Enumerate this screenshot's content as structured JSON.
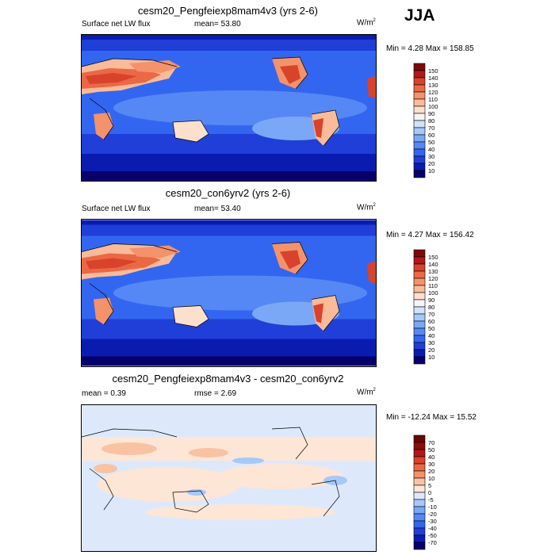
{
  "season": "JJA",
  "panels": [
    {
      "title": "cesm20_Pengfeiexp8mam4v3 (yrs 2-6)",
      "left_label": "Surface net LW flux",
      "center_label": "mean=  53.80",
      "unit_base": "W/m",
      "unit_exp": "2",
      "minmax": "Min =   4.28 Max = 158.85",
      "palette": "absolute"
    },
    {
      "title": "cesm20_con6yrv2 (yrs 2-6)",
      "left_label": "Surface net LW flux",
      "center_label": "mean=  53.40",
      "unit_base": "W/m",
      "unit_exp": "2",
      "minmax": "Min =   4.27 Max = 156.42",
      "palette": "absolute"
    },
    {
      "title": "cesm20_Pengfeiexp8mam4v3 - cesm20_con6yrv2",
      "left_label": "mean =   0.39",
      "center_label": "rmse =   2.69",
      "unit_base": "W/m",
      "unit_exp": "2",
      "minmax": "Min = -12.24 Max =  15.52",
      "palette": "difference"
    }
  ],
  "chart_data": [
    {
      "type": "heatmap",
      "title": "cesm20_Pengfeiexp8mam4v3 (yrs 2-6)",
      "variable": "Surface net LW flux",
      "units": "W/m2",
      "season": "JJA",
      "mean": 53.8,
      "min": 4.28,
      "max": 158.85,
      "colorbar_levels": [
        10,
        20,
        30,
        40,
        50,
        60,
        70,
        80,
        90,
        100,
        110,
        120,
        130,
        140,
        150
      ],
      "colorbar_colors": [
        "#07006b",
        "#0a1cb0",
        "#1f3fd8",
        "#3366f0",
        "#5588f5",
        "#7aa8f7",
        "#a6c8fa",
        "#cfe2fc",
        "#f5f5f5",
        "#fde0cc",
        "#f9bb9a",
        "#f4926c",
        "#eb6845",
        "#d9422b",
        "#b21818",
        "#7d0a0a"
      ]
    },
    {
      "type": "heatmap",
      "title": "cesm20_con6yrv2 (yrs 2-6)",
      "variable": "Surface net LW flux",
      "units": "W/m2",
      "season": "JJA",
      "mean": 53.4,
      "min": 4.27,
      "max": 156.42,
      "colorbar_levels": [
        10,
        20,
        30,
        40,
        50,
        60,
        70,
        80,
        90,
        100,
        110,
        120,
        130,
        140,
        150
      ],
      "colorbar_colors": [
        "#07006b",
        "#0a1cb0",
        "#1f3fd8",
        "#3366f0",
        "#5588f5",
        "#7aa8f7",
        "#a6c8fa",
        "#cfe2fc",
        "#f5f5f5",
        "#fde0cc",
        "#f9bb9a",
        "#f4926c",
        "#eb6845",
        "#d9422b",
        "#b21818",
        "#7d0a0a"
      ]
    },
    {
      "type": "heatmap",
      "title": "cesm20_Pengfeiexp8mam4v3 - cesm20_con6yrv2",
      "units": "W/m2",
      "season": "JJA",
      "mean": 0.39,
      "rmse": 2.69,
      "min": -12.24,
      "max": 15.52,
      "colorbar_levels": [
        -70,
        -50,
        -40,
        -30,
        -20,
        -10,
        -5,
        0,
        5,
        10,
        20,
        30,
        40,
        50,
        70
      ],
      "colorbar_colors": [
        "#07006b",
        "#0a1cb0",
        "#1f3fd8",
        "#3366f0",
        "#5588f5",
        "#7aa8f7",
        "#a6c8fa",
        "#dde9fb",
        "#fde6d6",
        "#f9c3a3",
        "#f4926c",
        "#eb6845",
        "#d9422b",
        "#b21818",
        "#8a0e0e",
        "#6a0606"
      ]
    }
  ]
}
